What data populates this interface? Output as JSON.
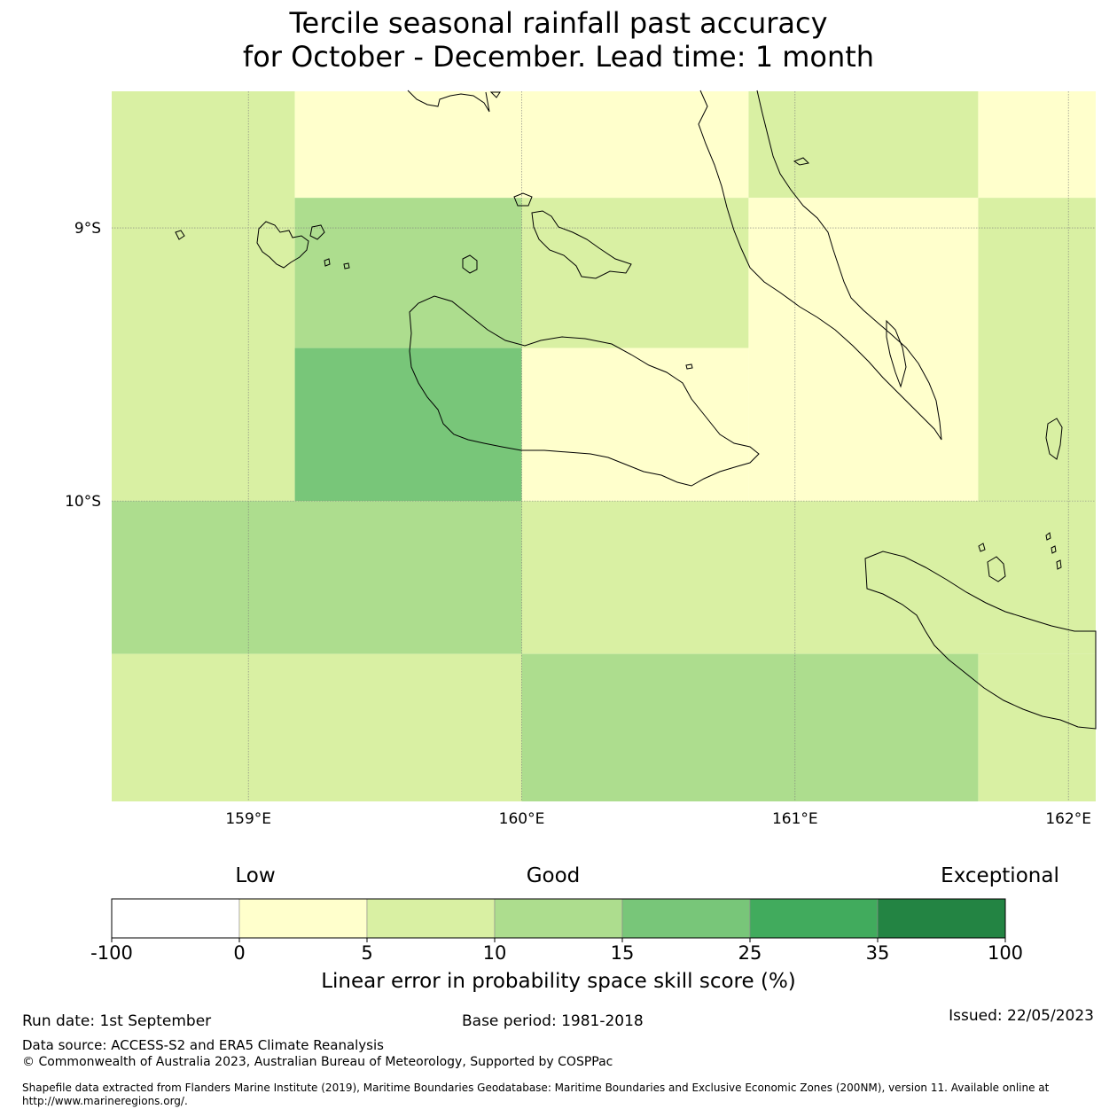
{
  "title_line1": "Tercile seasonal rainfall past accuracy",
  "title_line2": "for October - December. Lead time: 1 month",
  "map": {
    "lon_range": [
      158.5,
      162.1
    ],
    "lat_range": [
      -11.1,
      -8.5
    ],
    "lon_ticks": [
      {
        "value": 159,
        "label": "159°E"
      },
      {
        "value": 160,
        "label": "160°E"
      },
      {
        "value": 161,
        "label": "161°E"
      },
      {
        "value": 162,
        "label": "162°E"
      }
    ],
    "lat_ticks": [
      {
        "value": -9,
        "label": "9°S"
      },
      {
        "value": -10,
        "label": "10°S"
      }
    ],
    "grid_cells": [
      {
        "lon": [
          158.5,
          159.17
        ],
        "lat": [
          -10.0,
          -8.5
        ],
        "bin": 2
      },
      {
        "lon": [
          159.17,
          160.0
        ],
        "lat": [
          -8.89,
          -8.5
        ],
        "bin": 1
      },
      {
        "lon": [
          160.0,
          160.83
        ],
        "lat": [
          -8.89,
          -8.5
        ],
        "bin": 1
      },
      {
        "lon": [
          160.83,
          161.67
        ],
        "lat": [
          -8.89,
          -8.5
        ],
        "bin": 2
      },
      {
        "lon": [
          161.67,
          162.1
        ],
        "lat": [
          -8.89,
          -8.5
        ],
        "bin": 1
      },
      {
        "lon": [
          159.17,
          160.0
        ],
        "lat": [
          -9.44,
          -8.89
        ],
        "bin": 3
      },
      {
        "lon": [
          160.0,
          160.83
        ],
        "lat": [
          -9.44,
          -8.89
        ],
        "bin": 2
      },
      {
        "lon": [
          160.83,
          161.67
        ],
        "lat": [
          -10.0,
          -8.89
        ],
        "bin": 1
      },
      {
        "lon": [
          161.67,
          162.1
        ],
        "lat": [
          -10.0,
          -8.89
        ],
        "bin": 2
      },
      {
        "lon": [
          159.17,
          160.0
        ],
        "lat": [
          -10.0,
          -9.44
        ],
        "bin": 4
      },
      {
        "lon": [
          160.0,
          160.83
        ],
        "lat": [
          -10.0,
          -9.44
        ],
        "bin": 1
      },
      {
        "lon": [
          158.5,
          160.0
        ],
        "lat": [
          -10.56,
          -10.0
        ],
        "bin": 3
      },
      {
        "lon": [
          160.0,
          162.1
        ],
        "lat": [
          -10.56,
          -10.0
        ],
        "bin": 2
      },
      {
        "lon": [
          158.5,
          160.0
        ],
        "lat": [
          -11.1,
          -10.56
        ],
        "bin": 2
      },
      {
        "lon": [
          160.0,
          161.67
        ],
        "lat": [
          -11.1,
          -10.56
        ],
        "bin": 3
      },
      {
        "lon": [
          161.67,
          162.1
        ],
        "lat": [
          -11.1,
          -10.56
        ],
        "bin": 2
      }
    ]
  },
  "colorbar": {
    "boundaries": [
      "-100",
      "0",
      "5",
      "10",
      "15",
      "25",
      "35",
      "100"
    ],
    "colors": [
      "#ffffff",
      "#ffffcc",
      "#d9f0a3",
      "#addd8e",
      "#78c679",
      "#41ab5d",
      "#238443"
    ],
    "label": "Linear error in probability space skill score (%)",
    "categories": [
      "Low",
      "Good",
      "Exceptional"
    ]
  },
  "footer": {
    "run_date": "Run date: 1st September",
    "base_period": "Base period: 1981-2018",
    "issued": "Issued: 22/05/2023",
    "data_source": "Data source: ACCESS-S2 and ERA5 Climate Reanalysis",
    "copyright": "© Commonwealth of Australia 2023, Australian Bureau of Meteorology, Supported by COSPPac",
    "shapefile": "Shapefile data extracted from Flanders Marine Institute (2019), Maritime Boundaries Geodatabase: Maritime Boundaries and Exclusive Economic Zones (200NM), version 11. Available online at http://www.marineregions.org/."
  }
}
